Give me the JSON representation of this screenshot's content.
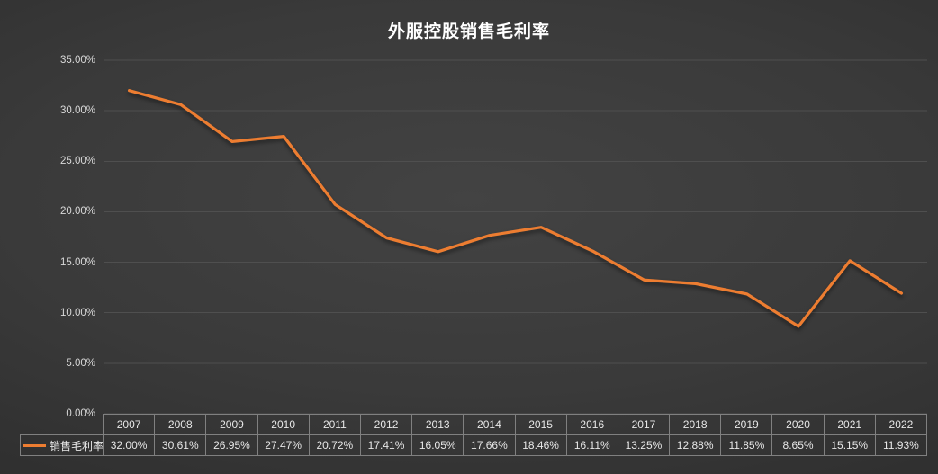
{
  "title": "外服控股销售毛利率",
  "legend": {
    "label": "销售毛利率"
  },
  "colors": {
    "line": "#ED7D31",
    "grid": "#4f4f4f",
    "axis_text": "#d9d9d9",
    "table_border": "#808080",
    "title_text": "#ffffff",
    "background_center": "#434343",
    "background_edge": "#1f1f1f"
  },
  "chart_data": {
    "type": "line",
    "title": "外服控股销售毛利率",
    "categories": [
      "2007",
      "2008",
      "2009",
      "2010",
      "2011",
      "2012",
      "2013",
      "2014",
      "2015",
      "2016",
      "2017",
      "2018",
      "2019",
      "2020",
      "2021",
      "2022"
    ],
    "series": [
      {
        "name": "销售毛利率",
        "values": [
          32.0,
          30.61,
          26.95,
          27.47,
          20.72,
          17.41,
          16.05,
          17.66,
          18.46,
          16.11,
          13.25,
          12.88,
          11.85,
          8.65,
          15.15,
          11.93
        ]
      }
    ],
    "value_labels": [
      "32.00%",
      "30.61%",
      "26.95%",
      "27.47%",
      "20.72%",
      "17.41%",
      "16.05%",
      "17.66%",
      "18.46%",
      "16.11%",
      "13.25%",
      "12.88%",
      "11.85%",
      "8.65%",
      "15.15%",
      "11.93%"
    ],
    "y_ticks": [
      "35.00%",
      "30.00%",
      "25.00%",
      "20.00%",
      "15.00%",
      "10.00%",
      "5.00%",
      "0.00%"
    ],
    "ylim": [
      0,
      35
    ],
    "xlabel": "",
    "ylabel": "",
    "grid": true,
    "legend_position": "bottom-table"
  }
}
